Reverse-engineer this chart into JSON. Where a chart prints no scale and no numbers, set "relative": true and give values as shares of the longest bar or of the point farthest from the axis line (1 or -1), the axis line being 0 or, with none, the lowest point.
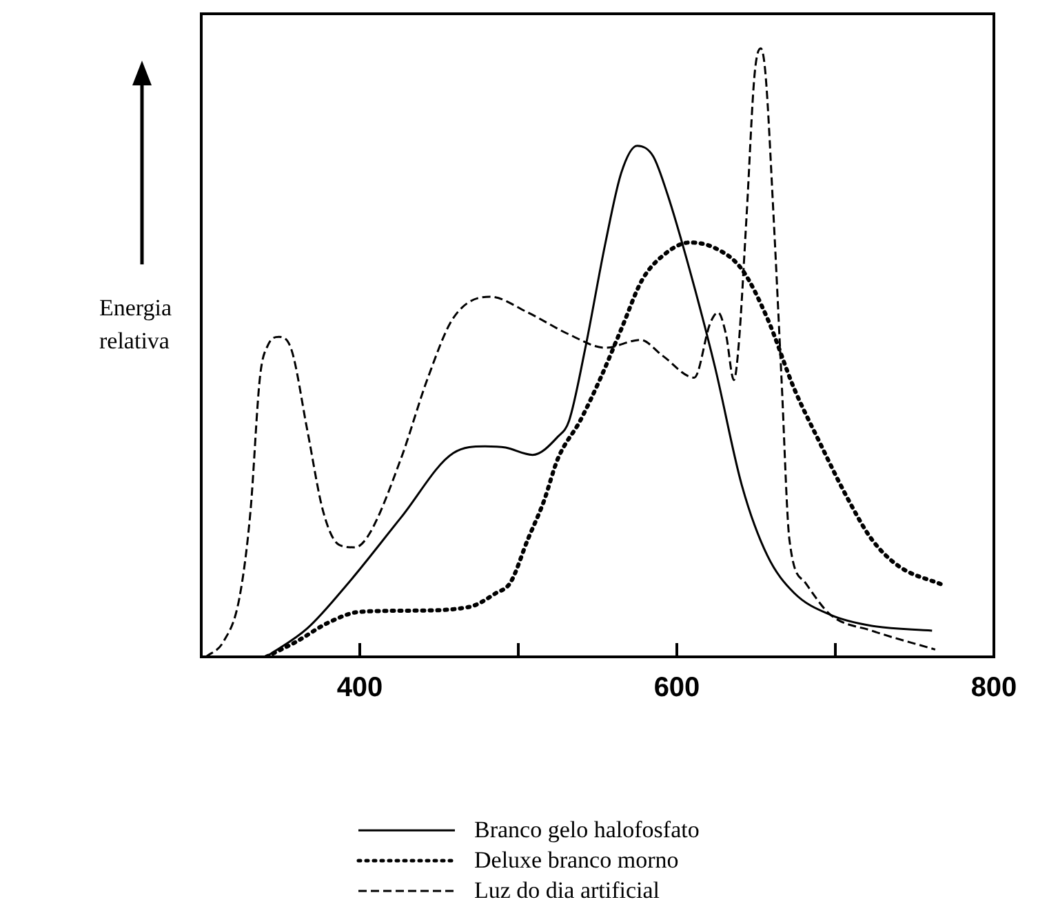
{
  "chart_data": {
    "type": "line",
    "ylabel": "Energia relativa",
    "relative": true,
    "xlim": [
      300,
      800
    ],
    "xticks": [
      400,
      {
        "value": 500,
        "label": null
      },
      600,
      {
        "value": 700,
        "label": null
      },
      800
    ],
    "legend": "bottom",
    "grid": false,
    "marker": "none",
    "tick_labels": "x",
    "series": [
      {
        "name": "Branco gelo halofosfato",
        "color": "#000000",
        "line_style": "solid",
        "x": [
          341,
          367,
          393,
          426,
          459,
          479,
          492,
          509,
          525,
          532,
          542,
          555,
          565,
          575,
          585,
          594,
          608,
          624,
          641,
          657,
          674,
          697,
          723,
          761
        ],
        "values": [
          0,
          0.047,
          0.122,
          0.229,
          0.335,
          0.346,
          0.344,
          0.332,
          0.362,
          0.388,
          0.504,
          0.681,
          0.796,
          0.84,
          0.823,
          0.761,
          0.637,
          0.477,
          0.282,
          0.167,
          0.105,
          0.069,
          0.051,
          0.043
        ]
      },
      {
        "name": "Deluxe branco morno",
        "color": "#000000",
        "line_style": "dotted",
        "x": [
          341,
          360,
          380,
          400,
          433,
          469,
          486,
          495,
          506,
          516,
          525,
          539,
          552,
          565,
          578,
          591,
          608,
          624,
          641,
          657,
          674,
          690,
          707,
          723,
          740,
          768
        ],
        "values": [
          0,
          0.025,
          0.056,
          0.074,
          0.076,
          0.082,
          0.105,
          0.122,
          0.193,
          0.255,
          0.326,
          0.388,
          0.459,
          0.539,
          0.619,
          0.659,
          0.681,
          0.672,
          0.637,
          0.557,
          0.441,
          0.353,
          0.264,
          0.193,
          0.149,
          0.118
        ]
      },
      {
        "name": "Luz do dia artificial",
        "color": "#000000",
        "line_style": "dashed",
        "x": [
          303,
          314,
          324,
          331,
          337,
          342,
          349,
          357,
          367,
          377,
          387,
          397,
          406,
          426,
          443,
          459,
          482,
          506,
          532,
          555,
          577,
          591,
          611,
          621,
          626,
          631,
          636,
          639,
          644,
          649,
          653,
          656,
          661,
          666,
          671,
          681,
          697,
          723,
          763
        ],
        "values": [
          0,
          0.025,
          0.096,
          0.238,
          0.459,
          0.512,
          0.526,
          0.504,
          0.371,
          0.238,
          0.184,
          0.18,
          0.202,
          0.326,
          0.459,
          0.557,
          0.592,
          0.566,
          0.53,
          0.508,
          0.521,
          0.495,
          0.459,
          0.548,
          0.566,
          0.53,
          0.455,
          0.512,
          0.725,
          0.956,
          1,
          0.956,
          0.725,
          0.459,
          0.193,
          0.122,
          0.069,
          0.043,
          0.012
        ]
      }
    ]
  }
}
